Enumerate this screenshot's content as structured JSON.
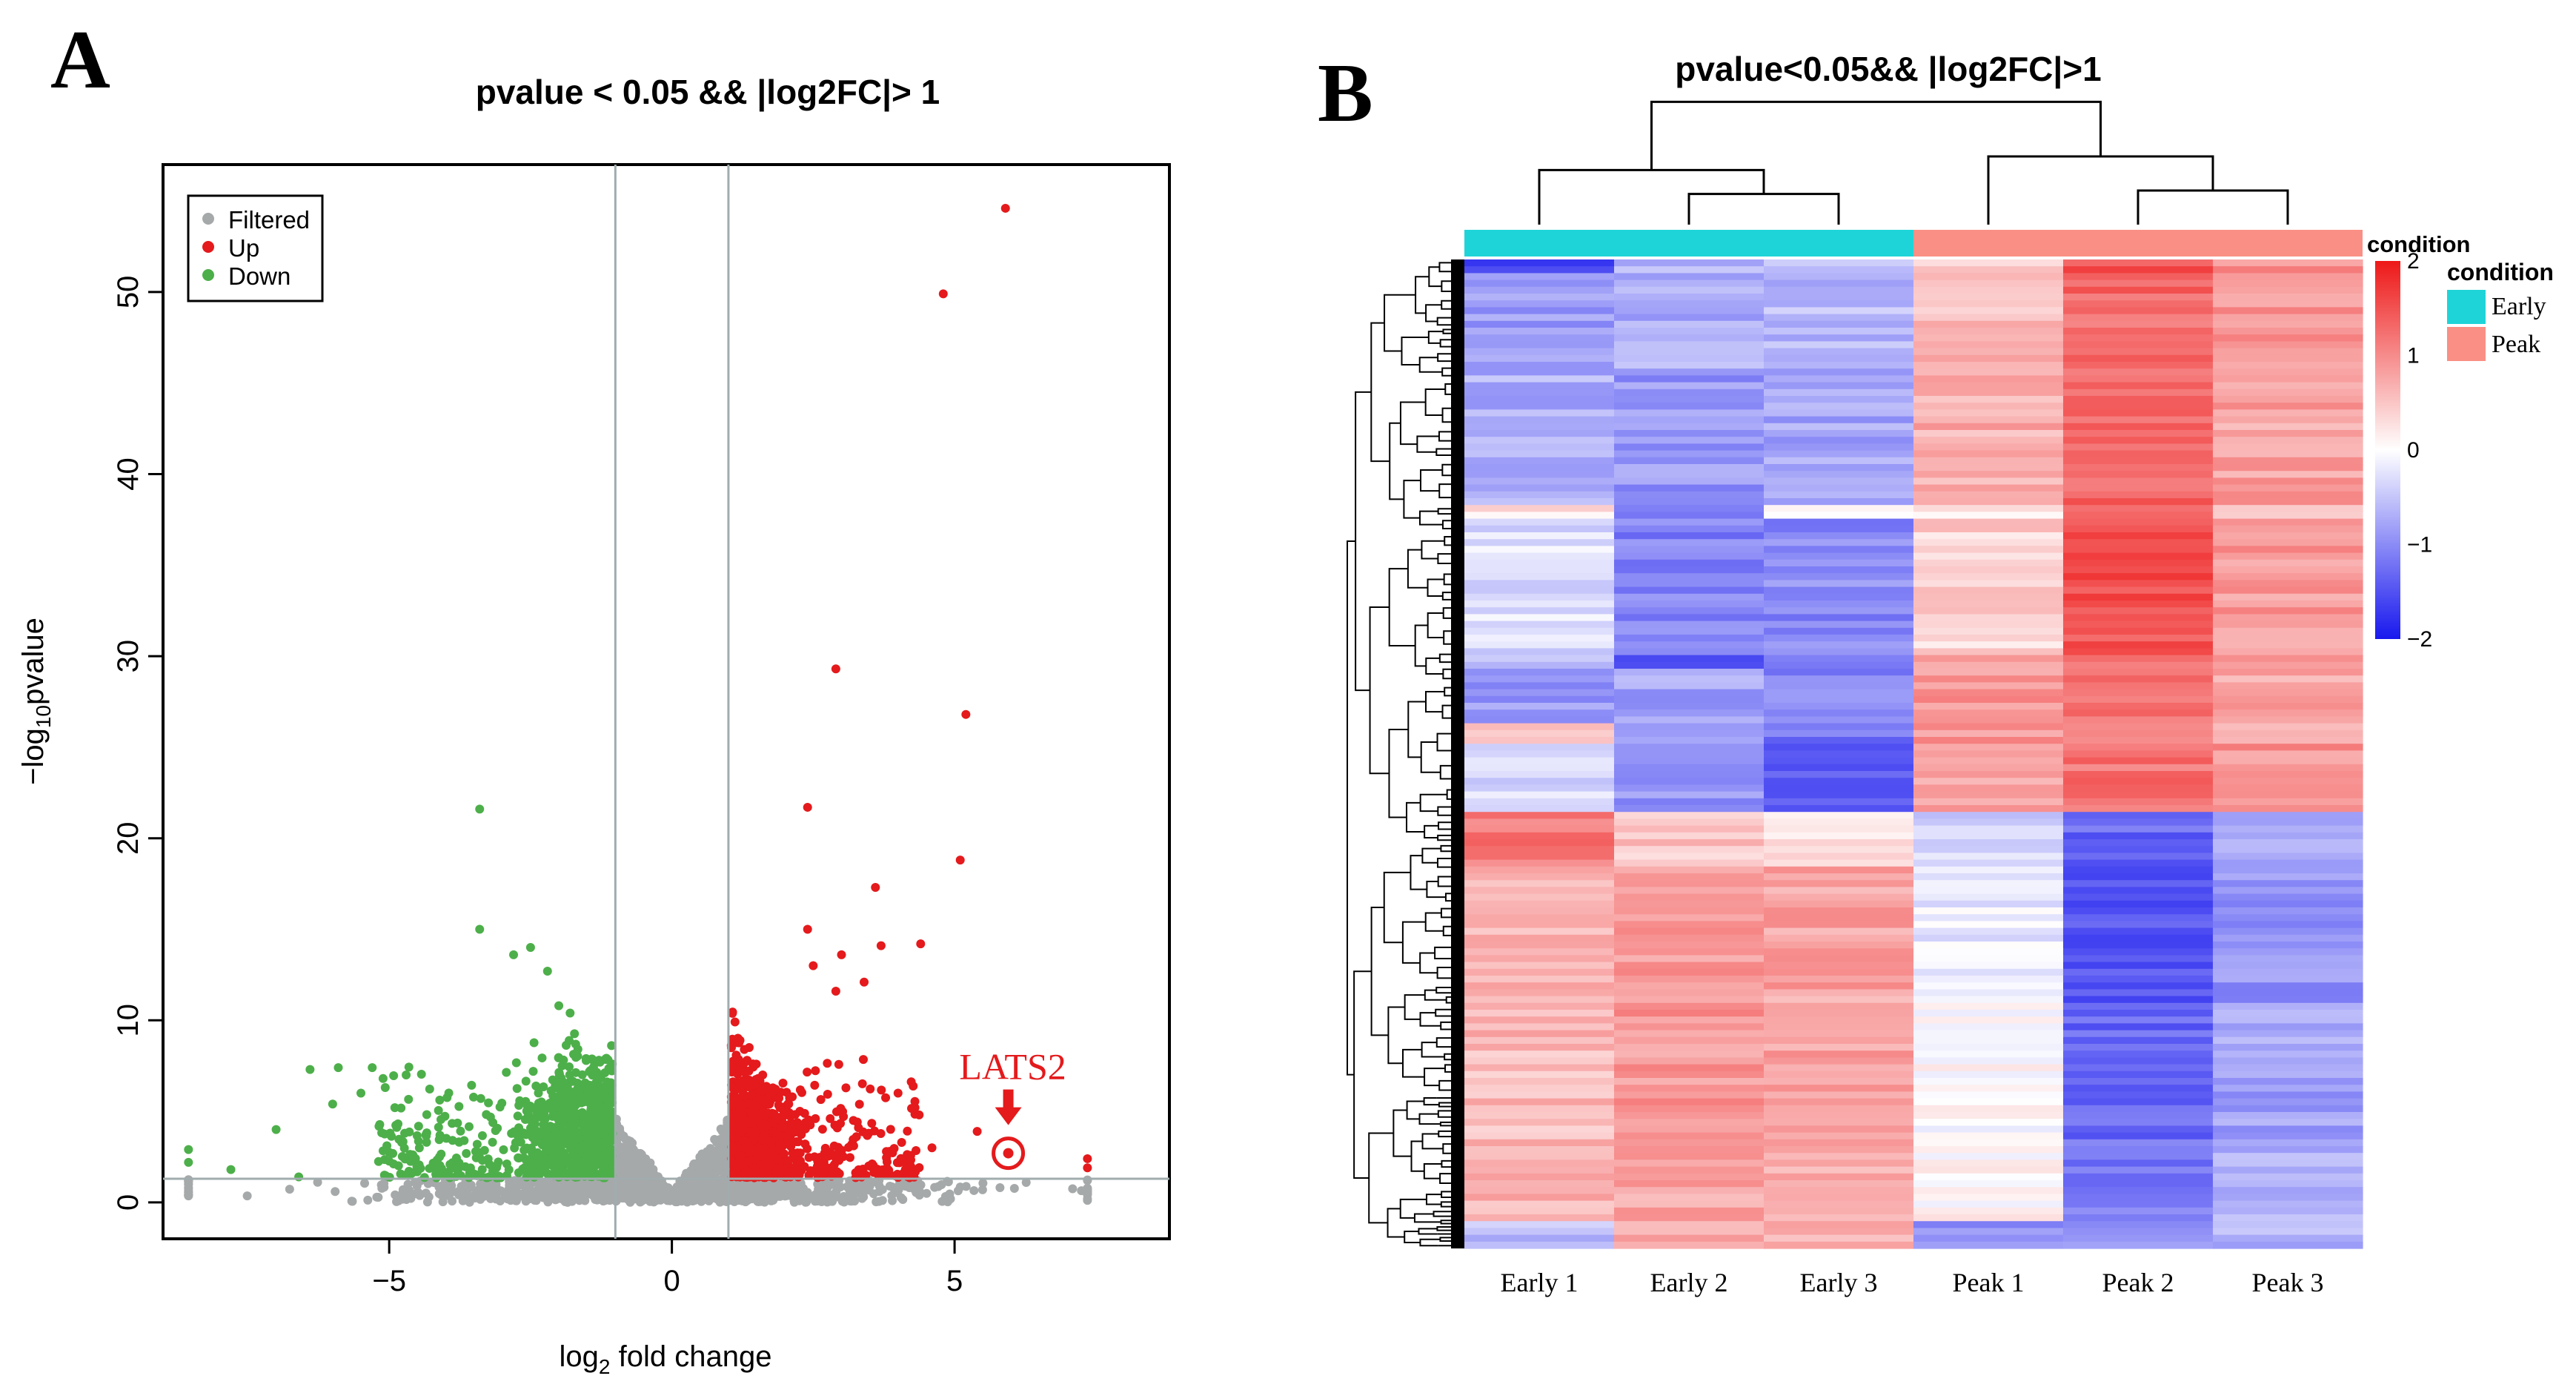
{
  "panel_labels": {
    "a": "A",
    "b": "B"
  },
  "colors": {
    "filtered": "#a6a9aa",
    "up": "#e41a1c",
    "down": "#4daf4a",
    "early": "#1fd4d8",
    "peak": "#fa8f85",
    "heat_low": "#1818ee",
    "heat_mid": "#ffffff",
    "heat_high": "#ee1818",
    "annotation": "#e41a1c",
    "threshold_line": "#a0acae"
  },
  "chart_data": [
    {
      "type": "scatter",
      "title": "pvalue < 0.05 && |log2FC|> 1",
      "xlabel": "log2 fold change",
      "xlabel_parts": {
        "pre": "log",
        "sub": "2",
        "post": " fold change"
      },
      "ylabel": "−log10pvalue",
      "ylabel_parts": {
        "pre": "−log",
        "sub": "10",
        "post": "pvalue"
      },
      "xlim": [
        -9,
        8.8
      ],
      "ylim": [
        -2,
        57
      ],
      "xticks": [
        -5,
        0,
        5
      ],
      "xtick_labels": [
        "−5",
        "0",
        "5"
      ],
      "yticks": [
        0,
        10,
        20,
        30,
        40,
        50
      ],
      "ytick_labels": [
        "0",
        "10",
        "20",
        "30",
        "40",
        "50"
      ],
      "thresholds": {
        "x": [
          -1,
          1
        ],
        "y": 1.3
      },
      "legend": {
        "position": "top-left",
        "entries": [
          {
            "label": "Filtered",
            "color_key": "filtered"
          },
          {
            "label": "Up",
            "color_key": "up"
          },
          {
            "label": "Down",
            "color_key": "down"
          }
        ]
      },
      "series": [
        {
          "name": "Up",
          "points": [
            [
              5.9,
              54.6
            ],
            [
              4.8,
              49.9
            ],
            [
              2.9,
              29.3
            ],
            [
              5.2,
              26.8
            ],
            [
              2.4,
              21.7
            ],
            [
              5.1,
              18.8
            ],
            [
              3.6,
              17.3
            ],
            [
              2.4,
              15.0
            ],
            [
              4.4,
              14.2
            ],
            [
              3.7,
              14.1
            ],
            [
              3.0,
              13.6
            ],
            [
              2.5,
              13.0
            ],
            [
              3.4,
              12.1
            ],
            [
              2.9,
              11.6
            ],
            [
              4.0,
              6.0
            ],
            [
              4.3,
              5.2
            ],
            [
              3.3,
              4.1
            ],
            [
              2.8,
              4.6
            ],
            [
              5.4,
              3.9
            ],
            [
              4.6,
              3.0
            ]
          ]
        },
        {
          "name": "Down",
          "points": [
            [
              -3.4,
              21.6
            ],
            [
              -3.4,
              15.0
            ],
            [
              -2.5,
              14.0
            ],
            [
              -2.8,
              13.6
            ],
            [
              -2.2,
              12.7
            ],
            [
              -2.0,
              10.8
            ],
            [
              -1.8,
              10.4
            ],
            [
              -6.4,
              7.3
            ],
            [
              -5.9,
              7.4
            ],
            [
              -5.3,
              7.4
            ],
            [
              -6.0,
              5.4
            ],
            [
              -7.0,
              4.0
            ],
            [
              -7.8,
              1.8
            ],
            [
              -6.6,
              1.4
            ],
            [
              -5.5,
              6.0
            ],
            [
              -4.7,
              7.0
            ],
            [
              -4.9,
              5.2
            ]
          ]
        }
      ],
      "annotation": {
        "label": "LATS2",
        "x": 5.95,
        "y": 2.7
      }
    },
    {
      "type": "heatmap",
      "title": "pvalue<0.05&& |log2FC|>1",
      "columns": [
        "Early 1",
        "Early 2",
        "Early 3",
        "Peak 1",
        "Peak 2",
        "Peak 3"
      ],
      "column_condition": [
        "Early",
        "Early",
        "Early",
        "Peak",
        "Peak",
        "Peak"
      ],
      "column_dendrogram": {
        "merges": [
          [
            2,
            3,
            0.45
          ],
          [
            1,
            "early-23",
            0.8
          ],
          [
            5,
            6,
            0.5
          ],
          [
            4,
            "peak-56",
            1.0
          ],
          [
            "early",
            "peak",
            1.8
          ]
        ]
      },
      "scale": {
        "min": -2,
        "max": 2,
        "ticks": [
          2,
          1,
          0,
          -1,
          -2
        ],
        "tick_labels": [
          "2",
          "1",
          "0",
          "−1",
          "−2"
        ]
      },
      "legend_title": "condition",
      "legend2": {
        "title": "condition",
        "entries": [
          {
            "label": "Early",
            "color_key": "early"
          },
          {
            "label": "Peak",
            "color_key": "peak"
          }
        ]
      },
      "row_blocks": [
        {
          "rows": 2,
          "values": [
            -1.6,
            -0.6,
            -0.5,
            0.4,
            1.5,
            1.0
          ]
        },
        {
          "rows": 14,
          "values": [
            -0.9,
            -0.7,
            -0.6,
            0.6,
            1.3,
            0.9
          ]
        },
        {
          "rows": 20,
          "values": [
            -0.7,
            -0.9,
            -0.8,
            0.7,
            1.3,
            0.8
          ]
        },
        {
          "rows": 2,
          "values": [
            0.2,
            -1.1,
            0.1,
            0.3,
            1.4,
            0.6
          ]
        },
        {
          "rows": 20,
          "values": [
            -0.3,
            -1.1,
            -1.0,
            0.4,
            1.5,
            0.9
          ]
        },
        {
          "rows": 2,
          "values": [
            -0.6,
            -1.6,
            -1.0,
            0.8,
            1.3,
            0.8
          ]
        },
        {
          "rows": 8,
          "values": [
            -0.9,
            -0.8,
            -1.1,
            0.9,
            1.2,
            0.8
          ]
        },
        {
          "rows": 3,
          "values": [
            0.4,
            -0.7,
            -1.2,
            0.9,
            1.1,
            0.8
          ]
        },
        {
          "rows": 10,
          "values": [
            -0.3,
            -0.9,
            -1.5,
            0.8,
            1.2,
            0.9
          ]
        },
        {
          "rows": 8,
          "values": [
            1.2,
            0.5,
            0.3,
            -0.4,
            -1.3,
            -0.8
          ]
        },
        {
          "rows": 20,
          "values": [
            0.7,
            0.9,
            0.8,
            -0.2,
            -1.4,
            -0.9
          ]
        },
        {
          "rows": 20,
          "values": [
            0.6,
            0.9,
            0.8,
            0.0,
            -1.3,
            -0.8
          ]
        },
        {
          "rows": 12,
          "values": [
            0.7,
            0.8,
            0.7,
            0.1,
            -1.2,
            -0.7
          ]
        },
        {
          "rows": 4,
          "values": [
            -0.6,
            0.8,
            0.7,
            -0.9,
            -0.8,
            -0.7
          ]
        }
      ]
    }
  ]
}
